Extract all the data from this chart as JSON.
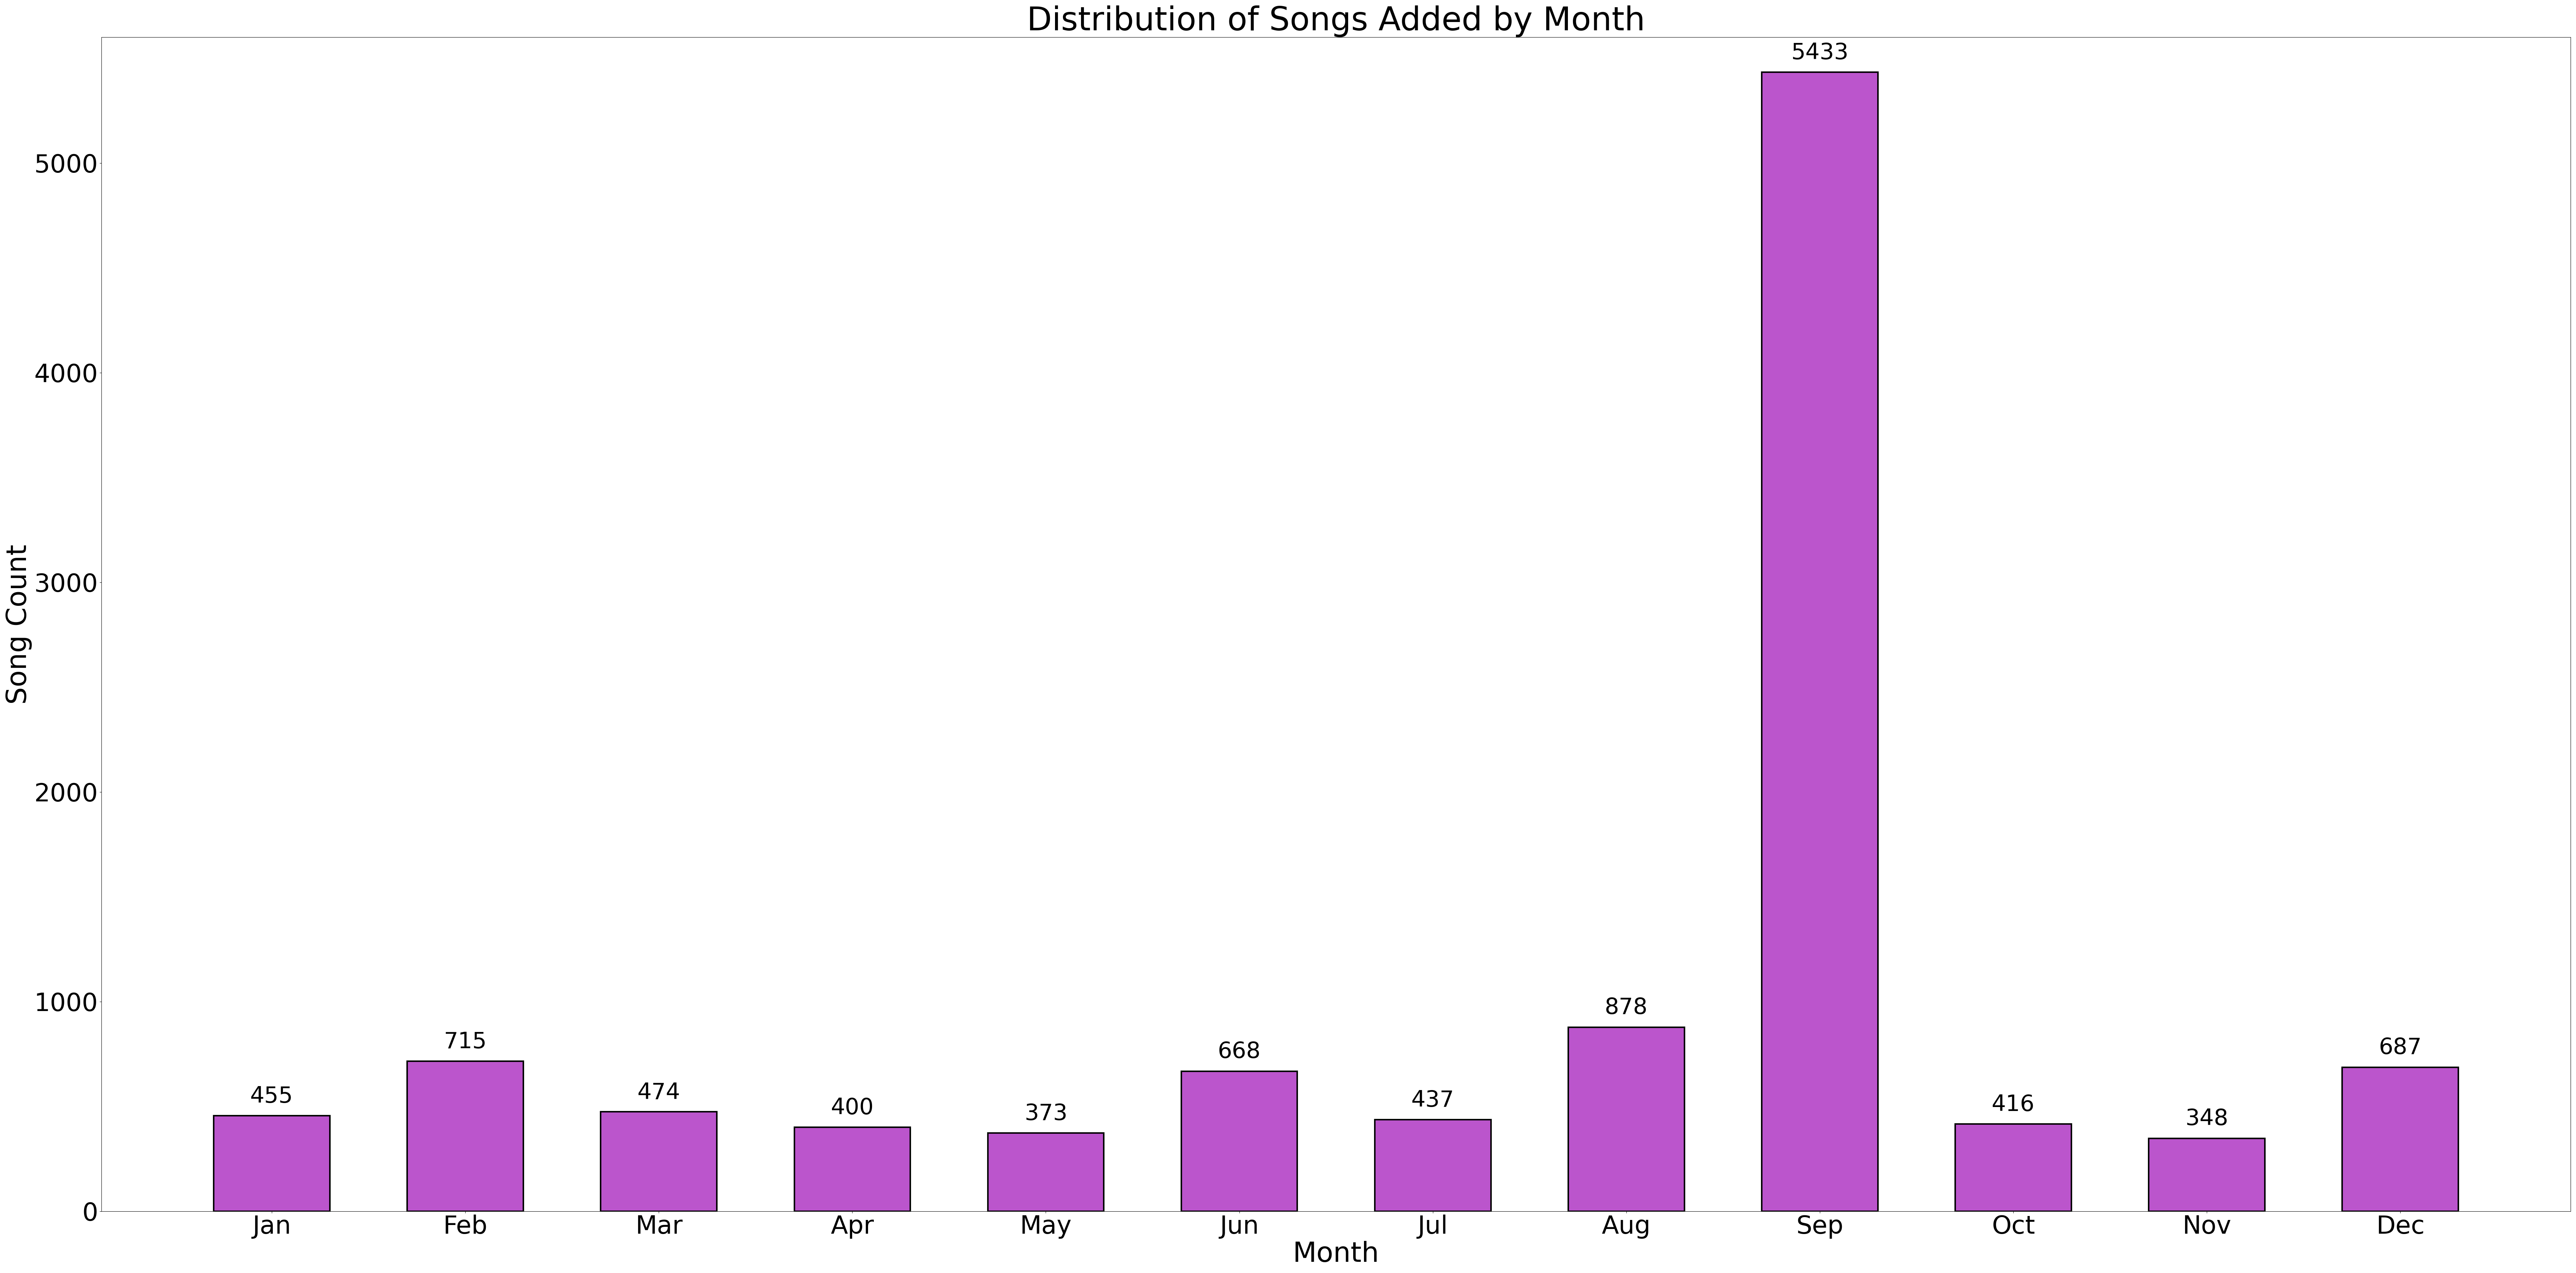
{
  "months": [
    "Jan",
    "Feb",
    "Mar",
    "Apr",
    "May",
    "Jun",
    "Jul",
    "Aug",
    "Sep",
    "Oct",
    "Nov",
    "Dec"
  ],
  "values": [
    455,
    715,
    474,
    400,
    373,
    668,
    437,
    878,
    5433,
    416,
    348,
    687
  ],
  "bar_color": "#bb55cc",
  "bar_edgecolor": "#000000",
  "title": "Distribution of Songs Added by Month",
  "xlabel": "Month",
  "ylabel": "Song Count",
  "ylim": [
    0,
    5600
  ],
  "title_fontsize": 65,
  "label_fontsize": 55,
  "tick_fontsize": 50,
  "annotation_fontsize": 45,
  "bar_linewidth": 3.0,
  "background_color": "#ffffff"
}
